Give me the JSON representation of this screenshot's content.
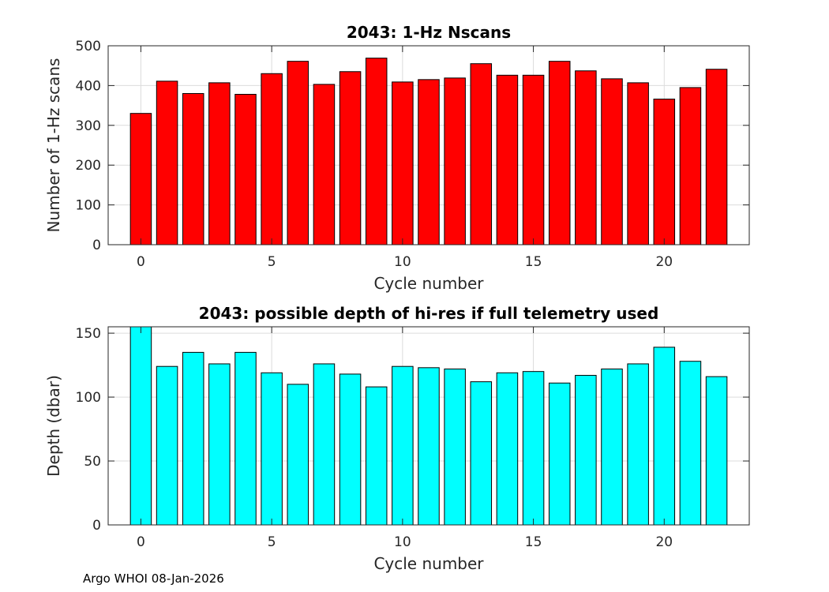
{
  "chart_data": [
    {
      "type": "bar",
      "title": "2043: 1-Hz Nscans",
      "xlabel": "Cycle number",
      "ylabel": "Number of 1-Hz scans",
      "x": [
        0,
        1,
        2,
        3,
        4,
        5,
        6,
        7,
        8,
        9,
        10,
        11,
        12,
        13,
        14,
        15,
        16,
        17,
        18,
        19,
        20,
        21,
        22
      ],
      "values": [
        330,
        411,
        380,
        407,
        378,
        430,
        461,
        403,
        435,
        469,
        409,
        415,
        419,
        455,
        426,
        426,
        461,
        437,
        417,
        407,
        366,
        395,
        441
      ],
      "xlim": [
        -1.25,
        23.25
      ],
      "ylim": [
        0,
        500
      ],
      "xticks": [
        0,
        5,
        10,
        15,
        20
      ],
      "yticks": [
        0,
        100,
        200,
        300,
        400,
        500
      ],
      "bar_color": "#ff0000",
      "grid": true
    },
    {
      "type": "bar",
      "title": "2043: possible depth of hi-res if full telemetry used",
      "xlabel": "Cycle number",
      "ylabel": "Depth (dbar)",
      "x": [
        0,
        1,
        2,
        3,
        4,
        5,
        6,
        7,
        8,
        9,
        10,
        11,
        12,
        13,
        14,
        15,
        16,
        17,
        18,
        19,
        20,
        21,
        22
      ],
      "values": [
        155,
        124,
        135,
        126,
        135,
        119,
        110,
        126,
        118,
        108,
        124,
        123,
        122,
        112,
        119,
        120,
        111,
        117,
        122,
        126,
        139,
        128,
        116
      ],
      "xlim": [
        -1.25,
        23.25
      ],
      "ylim": [
        0,
        155
      ],
      "xticks": [
        0,
        5,
        10,
        15,
        20
      ],
      "yticks": [
        0,
        50,
        100,
        150
      ],
      "bar_color": "#00ffff",
      "grid": true
    }
  ],
  "footer": "Argo WHOI 08-Jan-2026"
}
